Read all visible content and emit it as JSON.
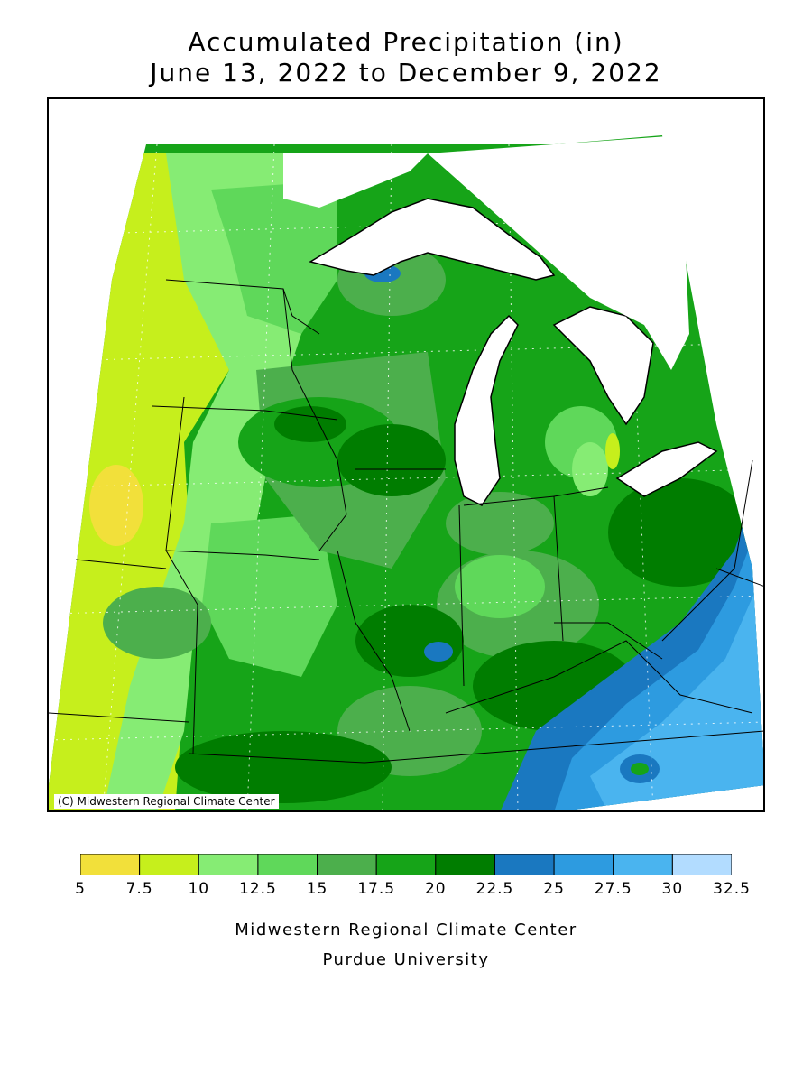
{
  "header": {
    "title_line1": "Accumulated Precipitation (in)",
    "title_line2": "June 13, 2022 to December 9, 2022"
  },
  "map": {
    "credit": "(C) Midwestern Regional Climate Center"
  },
  "legend": {
    "colors": [
      "#f2e03a",
      "#c6ef1c",
      "#86ec74",
      "#5fd85a",
      "#4caf4c",
      "#16a418",
      "#007d00",
      "#1a78c0",
      "#2d9be0",
      "#4ab4ef",
      "#b2dcff"
    ],
    "ticks": [
      "5",
      "7.5",
      "10",
      "12.5",
      "15",
      "17.5",
      "20",
      "22.5",
      "25",
      "27.5",
      "30",
      "32.5"
    ]
  },
  "footer": {
    "line1": "Midwestern Regional Climate Center",
    "line2": "Purdue University"
  }
}
